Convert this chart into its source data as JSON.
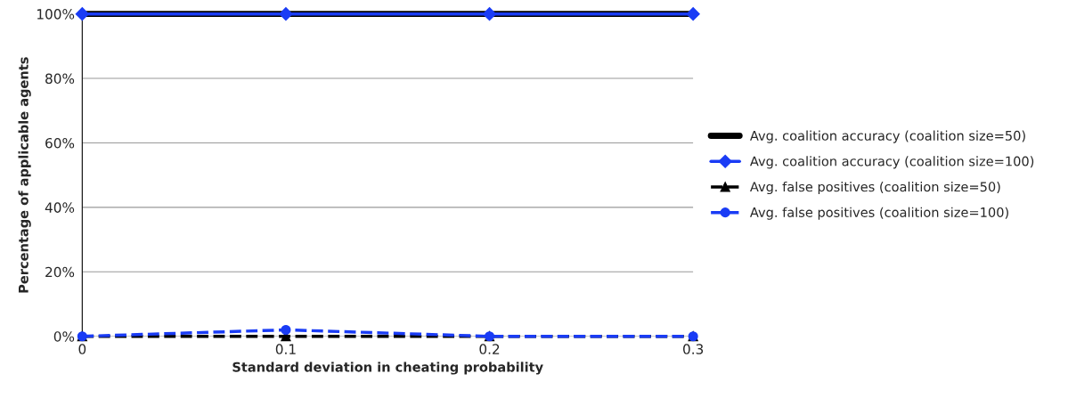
{
  "chart_data": {
    "type": "line",
    "xlabel": "Standard deviation in cheating probability",
    "ylabel": "Percentage of applicable agents",
    "x": [
      0,
      0.1,
      0.2,
      0.3
    ],
    "series": [
      {
        "name": "Avg. coalition accuracy (coalition size=50)",
        "color": "#000000",
        "marker": "none",
        "line_style": "solid",
        "values": [
          100,
          100,
          100,
          100
        ]
      },
      {
        "name": "Avg. coalition accuracy (coalition size=100)",
        "color": "#1a3cf5",
        "marker": "diamond",
        "line_style": "solid",
        "values": [
          100,
          100,
          100,
          100
        ]
      },
      {
        "name": "Avg. false positives (coalition size=50)",
        "color": "#000000",
        "marker": "triangle",
        "line_style": "dashed",
        "values": [
          0,
          0,
          0,
          0
        ]
      },
      {
        "name": "Avg. false positives (coalition size=100)",
        "color": "#1a3cf5",
        "marker": "circle",
        "line_style": "dashed",
        "values": [
          0,
          2,
          0,
          0
        ]
      }
    ],
    "xlim": [
      0,
      0.3
    ],
    "xticks": [
      0,
      0.1,
      0.2,
      0.3
    ],
    "ylim": [
      0,
      100
    ],
    "yticks": [
      {
        "value": 0,
        "label": "0%"
      },
      {
        "value": 20,
        "label": "20%"
      },
      {
        "value": 40,
        "label": "40%"
      },
      {
        "value": 60,
        "label": "60%"
      },
      {
        "value": 80,
        "label": "80%"
      },
      {
        "value": 100,
        "label": "100%"
      }
    ],
    "grid": "y",
    "legend": "right"
  }
}
